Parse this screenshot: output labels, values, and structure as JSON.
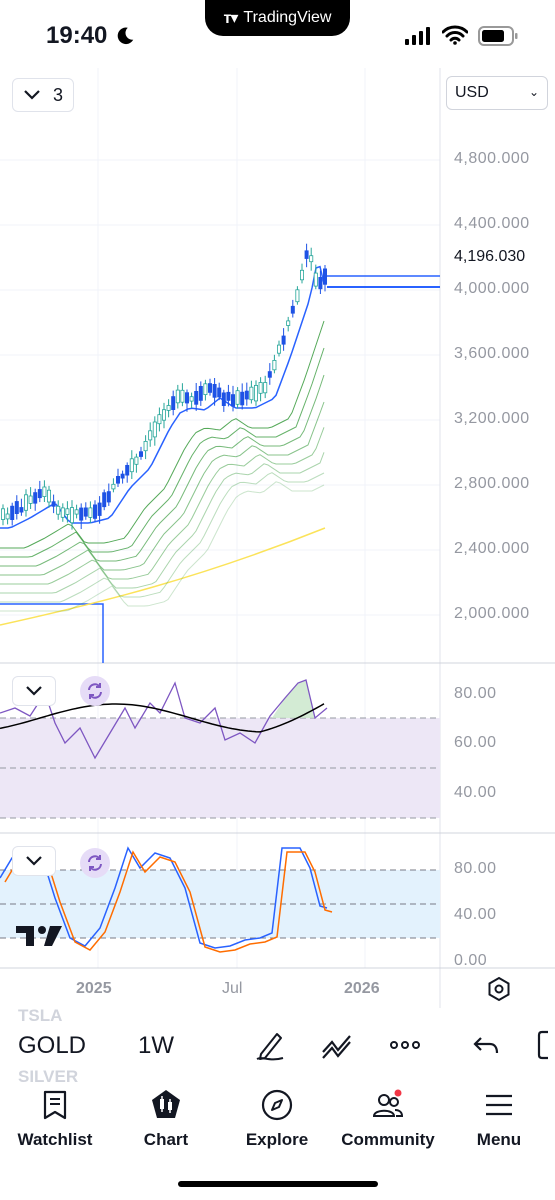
{
  "status_bar": {
    "time": "19:40",
    "app_label": "TradingView",
    "icons": [
      "moon-icon",
      "cellular-signal-icon",
      "wifi-icon",
      "battery-icon"
    ]
  },
  "chart": {
    "currency": "USD",
    "layers_count": "3",
    "last_price": "4,196.030",
    "price_axis": [
      "4,800.000",
      "4,400.000",
      "4,000.000",
      "3,600.000",
      "3,200.000",
      "2,800.000",
      "2,400.000",
      "2,000.000"
    ],
    "rsi_axis": [
      "80.00",
      "60.00",
      "40.00"
    ],
    "stoch_axis": [
      "80.00",
      "40.00",
      "0.00"
    ],
    "time_axis": [
      "2025",
      "Jul",
      "2026"
    ],
    "colors": {
      "up": "#26a69a",
      "down": "#1e53e5",
      "ma_blue": "#2962ff",
      "ribbon": "#43a047",
      "long_ma": "#fbe35a",
      "rsi_line": "#7e57c2",
      "rsi_band": "#ede7f6",
      "stoch_k": "#2962ff",
      "stoch_d": "#ff6d00",
      "stoch_band": "#e3f2fd"
    }
  },
  "symbol_bar": {
    "symbol_above": "TSLA",
    "symbol": "GOLD",
    "symbol_below": "SILVER",
    "interval": "1W",
    "tools": [
      "draw-pen-icon",
      "indicator-icon",
      "more-icon",
      "undo-icon"
    ]
  },
  "nav": {
    "watchlist": "Watchlist",
    "chart": "Chart",
    "explore": "Explore",
    "community": "Community",
    "menu": "Menu"
  }
}
